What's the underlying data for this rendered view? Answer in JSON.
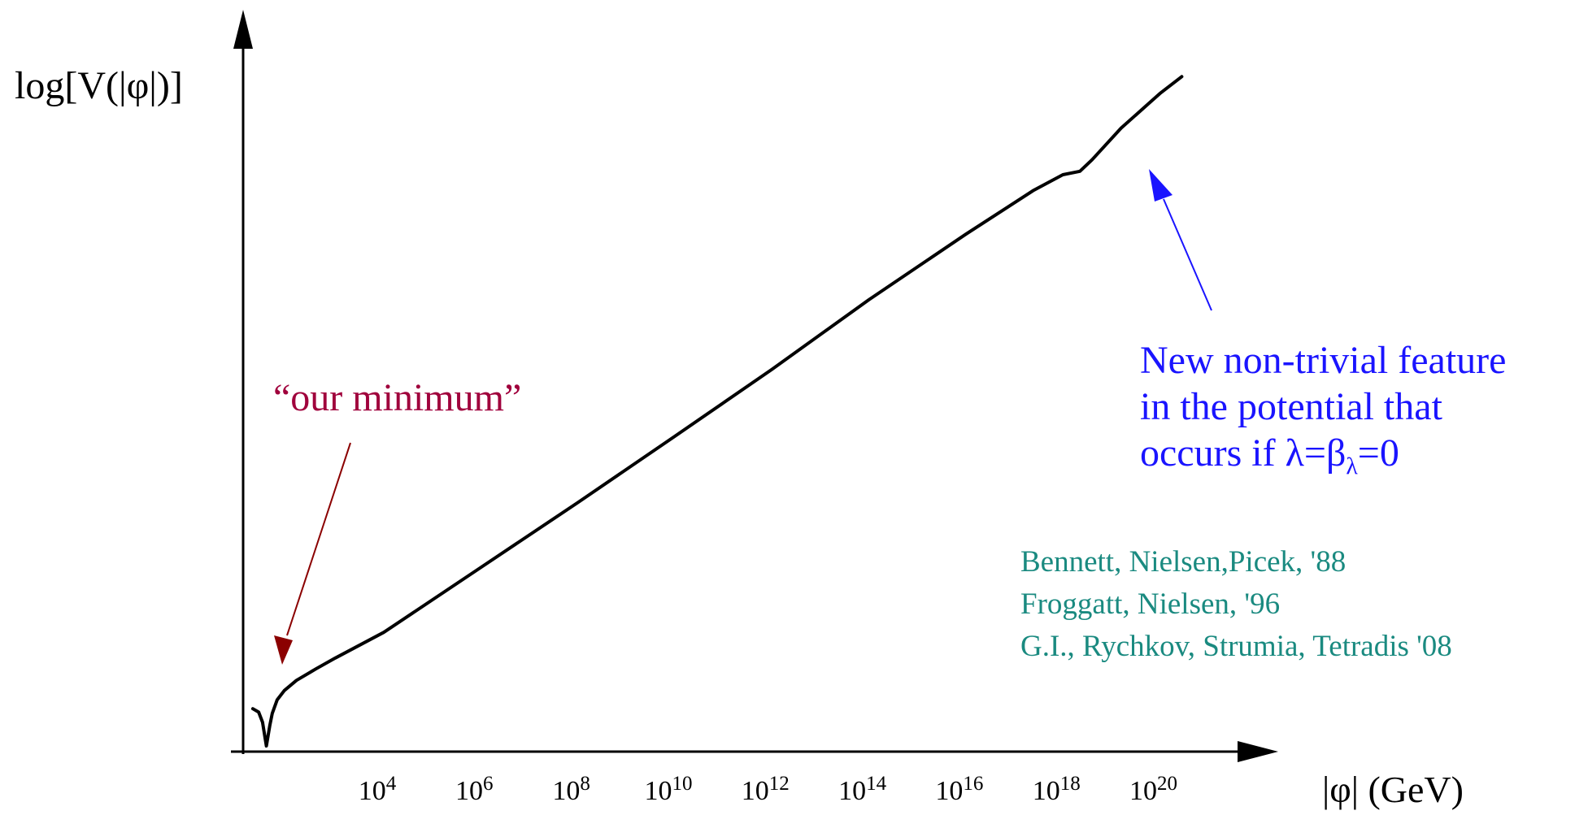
{
  "chart_data": {
    "type": "line",
    "ylabel": "log[V(|φ|)]",
    "xlabel": "|φ|  (GeV)",
    "x_scale": "log",
    "x_tick_labels": [
      {
        "base": "10",
        "exp": "4"
      },
      {
        "base": "10",
        "exp": "6"
      },
      {
        "base": "10",
        "exp": "8"
      },
      {
        "base": "10",
        "exp": "10"
      },
      {
        "base": "10",
        "exp": "12"
      },
      {
        "base": "10",
        "exp": "14"
      },
      {
        "base": "10",
        "exp": "16"
      },
      {
        "base": "10",
        "exp": "18"
      },
      {
        "base": "10",
        "exp": "20"
      }
    ],
    "x_ticks": [
      4,
      6,
      8,
      10,
      12,
      14,
      16,
      18,
      20
    ],
    "xlim": [
      1.1,
      21.6
    ],
    "ylim": [
      0,
      1
    ],
    "grid": false,
    "series": [
      {
        "color": "#000000",
        "x": [
          1.3,
          1.42,
          1.5,
          1.58,
          1.65,
          1.7,
          1.8,
          1.95,
          2.2,
          2.6,
          3.0,
          4.0,
          6.0,
          8.0,
          10.0,
          12.0,
          14.0,
          16.0,
          17.4,
          18.0,
          18.35,
          18.6,
          19.2,
          20.0,
          20.45
        ],
        "y": [
          0.055,
          0.05,
          0.035,
          0.0,
          0.03,
          0.048,
          0.068,
          0.082,
          0.097,
          0.114,
          0.13,
          0.168,
          0.264,
          0.36,
          0.458,
          0.557,
          0.66,
          0.757,
          0.822,
          0.845,
          0.85,
          0.867,
          0.914,
          0.965,
          0.99
        ]
      }
    ],
    "annotations": [
      {
        "id": "our-minimum",
        "text": "“our minimum”",
        "color": "#a0003c",
        "points_to": {
          "x": 1.65,
          "y": 0.07
        }
      },
      {
        "id": "feature",
        "lines": [
          "New non-trivial feature",
          "in the potential that"
        ],
        "line3": {
          "text": "occurs if λ=β",
          "sub": "λ",
          "tail": "=0"
        },
        "color": "#1a14ff",
        "points_to": {
          "x": 18.25,
          "y": 0.82
        }
      },
      {
        "id": "references",
        "lines": [
          "Bennett, Nielsen,Picek, '88",
          "Froggatt, Nielsen, '96",
          "G.I., Rychkov, Strumia, Tetradis '08"
        ],
        "color": "#1a8a80"
      }
    ]
  }
}
